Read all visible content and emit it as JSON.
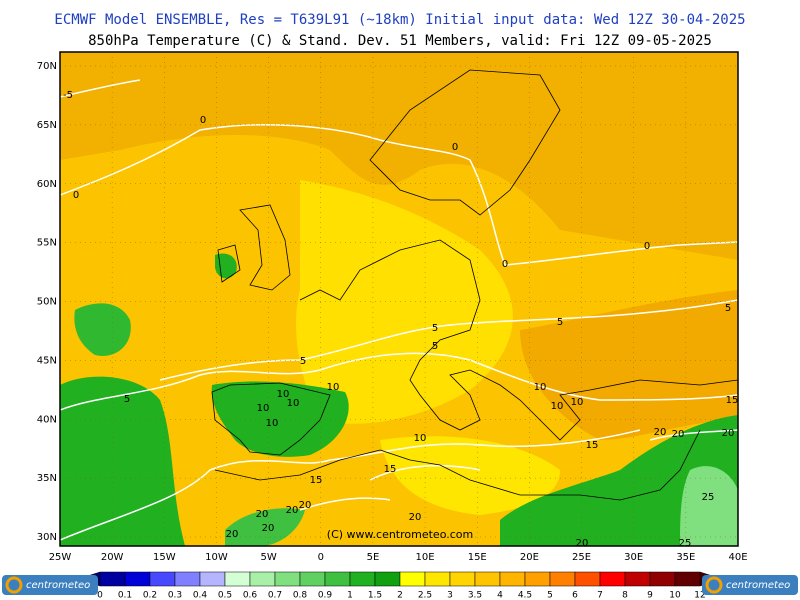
{
  "header": {
    "line1": "ECMWF Model ENSEMBLE, Res = T639L91 (~18km)  Initial input data: Wed 12Z 30-04-2025",
    "line2": "850hPa Temperature (C) & Stand. Dev.    51 Members, valid: Fri 12Z 09-05-2025"
  },
  "map": {
    "lat_labels": [
      "70N",
      "65N",
      "60N",
      "55N",
      "50N",
      "45N",
      "40N",
      "35N",
      "30N"
    ],
    "lon_labels": [
      "25W",
      "20W",
      "15W",
      "10W",
      "5W",
      "0",
      "5E",
      "10E",
      "15E",
      "20E",
      "25E",
      "30E",
      "35E",
      "40E"
    ],
    "contour_labels": [
      "-5",
      "0",
      "0",
      "0",
      "0",
      "0",
      "5",
      "5",
      "5",
      "5",
      "5",
      "5",
      "10",
      "10",
      "10",
      "10",
      "10",
      "10",
      "10",
      "10",
      "10",
      "15",
      "15",
      "15",
      "15",
      "20",
      "20",
      "20",
      "20",
      "20",
      "20",
      "20",
      "20",
      "20",
      "20",
      "25",
      "25"
    ],
    "copyright": "(C) www.centrometeo.com"
  },
  "colorbar": {
    "labels": [
      "0",
      "0.1",
      "0.2",
      "0.3",
      "0.4",
      "0.5",
      "0.6",
      "0.7",
      "0.8",
      "0.9",
      "1",
      "1.5",
      "2",
      "2.5",
      "3",
      "3.5",
      "4",
      "4.5",
      "5",
      "6",
      "7",
      "8",
      "9",
      "10",
      "12"
    ],
    "colors": [
      "#0000a0",
      "#0000d8",
      "#4848ff",
      "#8080ff",
      "#b4b4ff",
      "#d4ffd4",
      "#a8f0a8",
      "#80e080",
      "#60d060",
      "#40c040",
      "#20b020",
      "#10a010",
      "#ffff00",
      "#ffe600",
      "#ffd400",
      "#ffc400",
      "#ffb400",
      "#ffa000",
      "#ff8000",
      "#ff5000",
      "#ff0000",
      "#c00000",
      "#900000",
      "#600000"
    ],
    "under_color": "#000070",
    "over_color": "#400000"
  },
  "logos": [
    "centrometeo",
    "centrometeo"
  ]
}
